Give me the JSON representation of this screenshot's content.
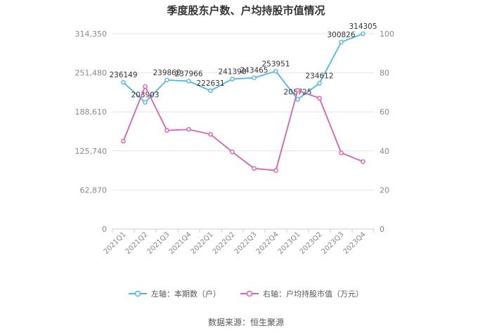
{
  "chart_data": {
    "type": "line",
    "title": "季度股东户数、户均持股市值情况",
    "categories": [
      "2021Q1",
      "2021Q2",
      "2021Q3",
      "2021Q4",
      "2022Q1",
      "2022Q2",
      "2022Q3",
      "2022Q4",
      "2023Q1",
      "2023Q2",
      "2023Q3",
      "2023Q4"
    ],
    "series": [
      {
        "name": "左轴：本期数（户）",
        "axis": "left",
        "color": "#4db8e8",
        "values": [
          236149,
          203903,
          239860,
          237966,
          222631,
          241398,
          243465,
          253951,
          208725,
          234612,
          300826,
          314305
        ],
        "labels": [
          "236149",
          "203903",
          "239860",
          "237966",
          "222631",
          "241398",
          "243465",
          "253951",
          "208725",
          "234612",
          "300826",
          "314305"
        ]
      },
      {
        "name": "右轴：户均持股市值（万元）",
        "axis": "right",
        "color": "#d95fb3",
        "values": [
          45,
          73,
          50.5,
          51,
          48.5,
          39.5,
          31,
          30,
          71,
          67,
          39,
          34.5
        ]
      }
    ],
    "left_axis": {
      "min": 0,
      "max": 314350,
      "ticks": [
        0,
        62870,
        125740,
        188610,
        251480,
        314350
      ],
      "tick_labels": [
        "0",
        "62,870",
        "125,740",
        "188,610",
        "251,480",
        "314,350"
      ]
    },
    "right_axis": {
      "min": 0,
      "max": 100,
      "ticks": [
        0,
        20,
        40,
        60,
        80,
        100
      ],
      "tick_labels": [
        "0",
        "20",
        "40",
        "60",
        "80",
        "100"
      ]
    },
    "grid": true,
    "legend_position": "bottom"
  },
  "source_text": "数据来源：恒生聚源"
}
